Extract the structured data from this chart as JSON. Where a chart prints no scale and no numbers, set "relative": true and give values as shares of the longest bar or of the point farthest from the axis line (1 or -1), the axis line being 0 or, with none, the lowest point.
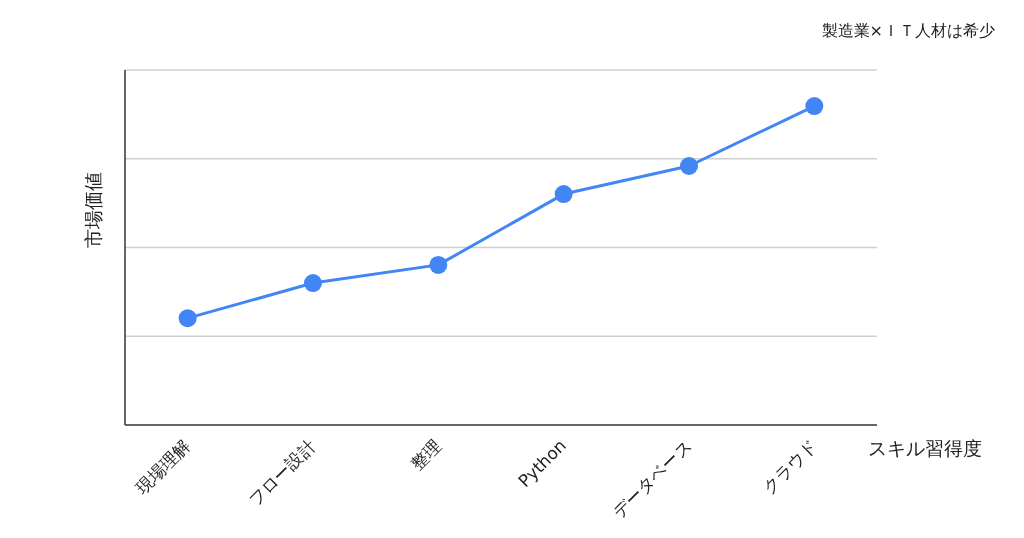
{
  "chart_data": {
    "type": "line",
    "title": "製造業×ＩＴ人材は希少",
    "xlabel": "スキル習得度",
    "ylabel": "市場価値",
    "categories": [
      "現場理解",
      "フロー設計",
      "整理",
      "Python",
      "データベース",
      "クラウド"
    ],
    "relative": true,
    "series": [
      {
        "color": "#4285f4",
        "values": [
          0.335,
          0.445,
          0.502,
          0.724,
          0.812,
          1
        ]
      }
    ],
    "grid": "y",
    "marker": "circle",
    "line_style": "solid"
  }
}
